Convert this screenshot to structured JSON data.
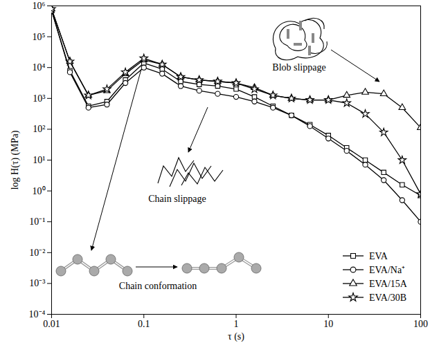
{
  "chart_data": {
    "type": "line",
    "x_label": "τ (s)",
    "y_label": "log H(τ) (MPa)",
    "log": true,
    "grid": false,
    "legend": "lower right",
    "xlim": [
      0.01,
      100
    ],
    "xticks": [
      0.01,
      0.1,
      1,
      10,
      100
    ],
    "ylim": [
      0.0001,
      1000000
    ],
    "yticks": [
      {
        "value": 0.0001,
        "label": "10⁻⁴"
      },
      {
        "value": 0.001,
        "label": "10⁻³"
      },
      {
        "value": 0.01,
        "label": "10⁻²"
      },
      {
        "value": 0.1,
        "label": "10⁻¹"
      },
      {
        "value": 1,
        "label": "10⁰"
      },
      {
        "value": 10,
        "label": "10¹"
      },
      {
        "value": 100,
        "label": "10²"
      },
      {
        "value": 1000,
        "label": "10³"
      },
      {
        "value": 10000,
        "label": "10⁴"
      },
      {
        "value": 100000,
        "label": "10⁵"
      },
      {
        "value": 1000000,
        "label": "10⁶"
      }
    ],
    "annotations": [
      "Chain conformation",
      "Chain slippage",
      "Blob slippage"
    ],
    "x": [
      0.01,
      0.0158,
      0.0251,
      0.0398,
      0.0631,
      0.1,
      0.158,
      0.251,
      0.398,
      0.631,
      1,
      1.58,
      2.51,
      3.98,
      6.31,
      10,
      15.8,
      25.1,
      39.8,
      63.1,
      100
    ],
    "series": [
      {
        "name": "EVA",
        "color": "#000000",
        "marker": "square",
        "values": [
          708000,
          7940,
          562,
          794,
          3980,
          14100,
          8910,
          3550,
          2820,
          2510,
          2000,
          1120,
          562,
          282,
          141,
          63.1,
          25.1,
          10,
          3.98,
          1.58,
          0.708
        ]
      },
      {
        "name": "EVA/Na⁺",
        "color": "#000000",
        "marker": "circle",
        "values": [
          708000,
          7080,
          501,
          631,
          3160,
          10000,
          6310,
          2510,
          1780,
          1410,
          1120,
          794,
          501,
          282,
          126,
          50.1,
          19.9,
          7.08,
          2.24,
          0.501,
          0.1
        ]
      },
      {
        "name": "EVA/15A",
        "color": "#000000",
        "marker": "triangle",
        "values": [
          794000,
          15800,
          1260,
          1780,
          6310,
          17800,
          12600,
          5010,
          3980,
          3550,
          3160,
          2240,
          1260,
          1000,
          891,
          891,
          1260,
          1580,
          1410,
          501,
          112
        ]
      },
      {
        "name": "EVA/30B",
        "color": "#000000",
        "marker": "star",
        "values": [
          794000,
          15800,
          1260,
          2000,
          7080,
          20000,
          12600,
          5010,
          3980,
          3550,
          3160,
          2000,
          1260,
          1000,
          891,
          891,
          708,
          316,
          79.4,
          10,
          0.794
        ]
      }
    ]
  }
}
